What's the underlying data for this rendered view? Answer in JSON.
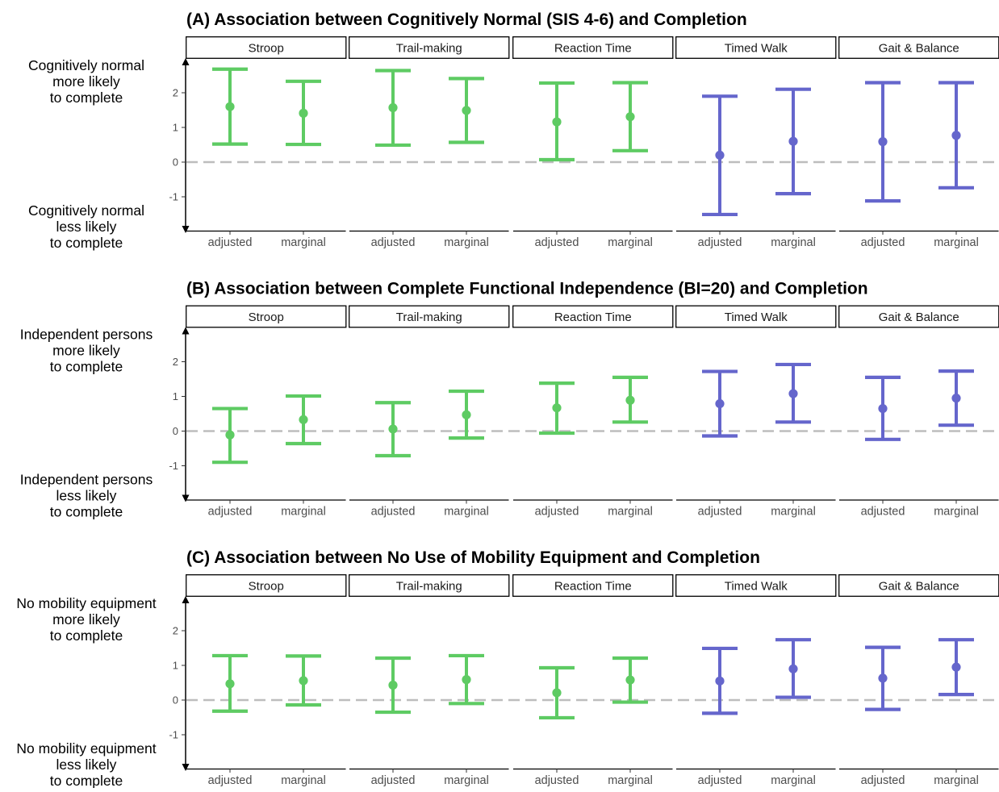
{
  "colors": {
    "cognitive_group": "#5ecb63",
    "physical_group": "#6566cc",
    "reference_line": "#bdbdbd"
  },
  "chart_data": [
    {
      "type": "errorbar",
      "title": "(A) Association between Cognitively Normal (SIS 4-6) and Completion",
      "side_label_top": [
        "Cognitively normal",
        "more likely",
        "to complete"
      ],
      "side_label_bottom": [
        "Cognitively normal",
        "less likely",
        "to complete"
      ],
      "yticks": [
        -1,
        0,
        1,
        2
      ],
      "ylim": [
        -2,
        2.9
      ],
      "reference_line": 0,
      "facets": [
        {
          "name": "Stroop",
          "group": "cognitive",
          "estimates": [
            {
              "label": "adjusted",
              "value": 1.6,
              "lower": 0.52,
              "upper": 2.68
            },
            {
              "label": "marginal",
              "value": 1.41,
              "lower": 0.51,
              "upper": 2.33
            }
          ]
        },
        {
          "name": "Trail-making",
          "group": "cognitive",
          "estimates": [
            {
              "label": "adjusted",
              "value": 1.57,
              "lower": 0.49,
              "upper": 2.64
            },
            {
              "label": "marginal",
              "value": 1.49,
              "lower": 0.57,
              "upper": 2.41
            }
          ]
        },
        {
          "name": "Reaction Time",
          "group": "cognitive",
          "estimates": [
            {
              "label": "adjusted",
              "value": 1.16,
              "lower": 0.07,
              "upper": 2.28
            },
            {
              "label": "marginal",
              "value": 1.31,
              "lower": 0.33,
              "upper": 2.29
            }
          ]
        },
        {
          "name": "Timed Walk",
          "group": "physical",
          "estimates": [
            {
              "label": "adjusted",
              "value": 0.2,
              "lower": -1.51,
              "upper": 1.9
            },
            {
              "label": "marginal",
              "value": 0.6,
              "lower": -0.91,
              "upper": 2.1
            }
          ]
        },
        {
          "name": "Gait & Balance",
          "group": "physical",
          "estimates": [
            {
              "label": "adjusted",
              "value": 0.59,
              "lower": -1.12,
              "upper": 2.29
            },
            {
              "label": "marginal",
              "value": 0.77,
              "lower": -0.74,
              "upper": 2.29
            }
          ]
        }
      ]
    },
    {
      "type": "errorbar",
      "title": "(B) Association between Complete Functional Independence (BI=20) and Completion",
      "side_label_top": [
        "Independent persons",
        "more likely",
        "to complete"
      ],
      "side_label_bottom": [
        "Independent persons",
        "less likely",
        "to complete"
      ],
      "yticks": [
        -1,
        0,
        1,
        2
      ],
      "ylim": [
        -2,
        2.9
      ],
      "reference_line": 0,
      "facets": [
        {
          "name": "Stroop",
          "group": "cognitive",
          "estimates": [
            {
              "label": "adjusted",
              "value": -0.11,
              "lower": -0.9,
              "upper": 0.65
            },
            {
              "label": "marginal",
              "value": 0.33,
              "lower": -0.36,
              "upper": 1.01
            }
          ]
        },
        {
          "name": "Trail-making",
          "group": "cognitive",
          "estimates": [
            {
              "label": "adjusted",
              "value": 0.06,
              "lower": -0.71,
              "upper": 0.82
            },
            {
              "label": "marginal",
              "value": 0.47,
              "lower": -0.2,
              "upper": 1.15
            }
          ]
        },
        {
          "name": "Reaction Time",
          "group": "cognitive",
          "estimates": [
            {
              "label": "adjusted",
              "value": 0.67,
              "lower": -0.06,
              "upper": 1.38
            },
            {
              "label": "marginal",
              "value": 0.89,
              "lower": 0.26,
              "upper": 1.55
            }
          ]
        },
        {
          "name": "Timed Walk",
          "group": "physical",
          "estimates": [
            {
              "label": "adjusted",
              "value": 0.79,
              "lower": -0.14,
              "upper": 1.72
            },
            {
              "label": "marginal",
              "value": 1.08,
              "lower": 0.26,
              "upper": 1.92
            }
          ]
        },
        {
          "name": "Gait & Balance",
          "group": "physical",
          "estimates": [
            {
              "label": "adjusted",
              "value": 0.65,
              "lower": -0.24,
              "upper": 1.55
            },
            {
              "label": "marginal",
              "value": 0.95,
              "lower": 0.17,
              "upper": 1.73
            }
          ]
        }
      ]
    },
    {
      "type": "errorbar",
      "title": "(C) Association between No Use of Mobility Equipment and Completion",
      "side_label_top": [
        "No mobility equipment",
        "more likely",
        "to complete"
      ],
      "side_label_bottom": [
        "No mobility equipment",
        "less likely",
        "to complete"
      ],
      "yticks": [
        -1,
        0,
        1,
        2
      ],
      "ylim": [
        -2,
        2.9
      ],
      "reference_line": 0,
      "facets": [
        {
          "name": "Stroop",
          "group": "cognitive",
          "estimates": [
            {
              "label": "adjusted",
              "value": 0.47,
              "lower": -0.32,
              "upper": 1.28
            },
            {
              "label": "marginal",
              "value": 0.56,
              "lower": -0.14,
              "upper": 1.27
            }
          ]
        },
        {
          "name": "Trail-making",
          "group": "cognitive",
          "estimates": [
            {
              "label": "adjusted",
              "value": 0.43,
              "lower": -0.35,
              "upper": 1.21
            },
            {
              "label": "marginal",
              "value": 0.59,
              "lower": -0.1,
              "upper": 1.28
            }
          ]
        },
        {
          "name": "Reaction Time",
          "group": "cognitive",
          "estimates": [
            {
              "label": "adjusted",
              "value": 0.21,
              "lower": -0.51,
              "upper": 0.93
            },
            {
              "label": "marginal",
              "value": 0.58,
              "lower": -0.06,
              "upper": 1.21
            }
          ]
        },
        {
          "name": "Timed Walk",
          "group": "physical",
          "estimates": [
            {
              "label": "adjusted",
              "value": 0.55,
              "lower": -0.38,
              "upper": 1.49
            },
            {
              "label": "marginal",
              "value": 0.9,
              "lower": 0.08,
              "upper": 1.74
            }
          ]
        },
        {
          "name": "Gait & Balance",
          "group": "physical",
          "estimates": [
            {
              "label": "adjusted",
              "value": 0.63,
              "lower": -0.27,
              "upper": 1.52
            },
            {
              "label": "marginal",
              "value": 0.95,
              "lower": 0.16,
              "upper": 1.74
            }
          ]
        }
      ]
    }
  ]
}
